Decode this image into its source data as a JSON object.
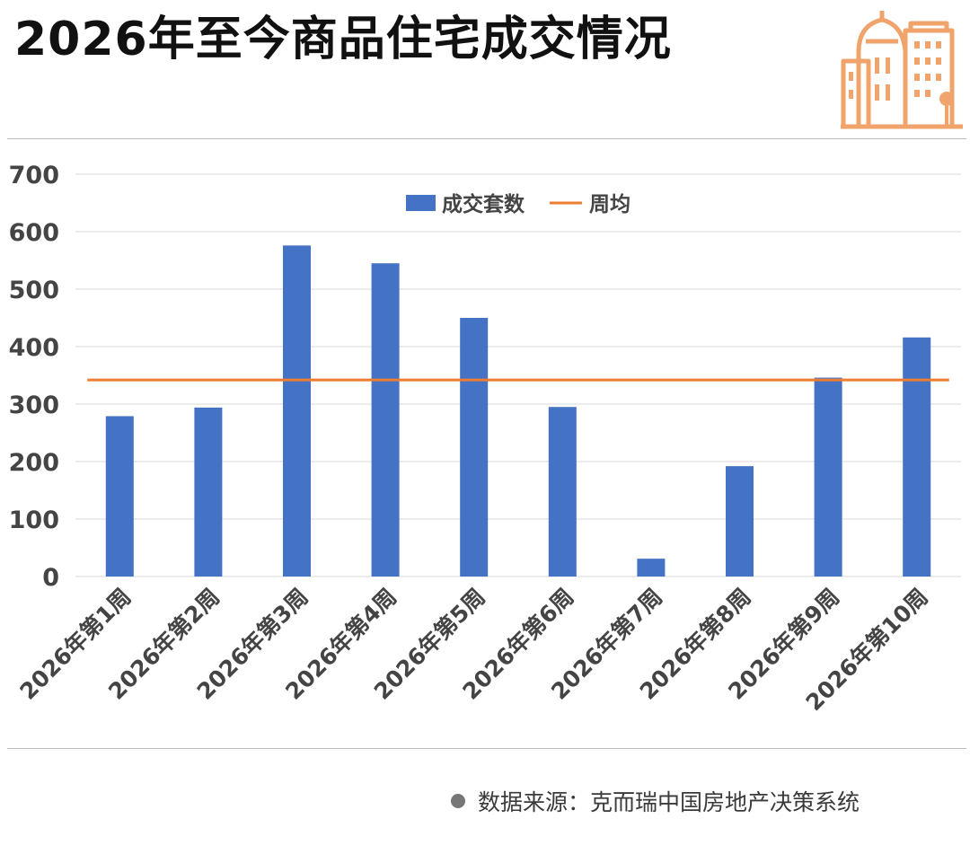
{
  "header": {
    "title": "2026年至今商品住宅成交情况"
  },
  "logo": {
    "icon": "city-buildings-icon",
    "color": "#F0A36B"
  },
  "chart_data": {
    "type": "bar",
    "categories": [
      "2026年第1周",
      "2026年第2周",
      "2026年第3周",
      "2026年第4周",
      "2026年第5周",
      "2026年第6周",
      "2026年第7周",
      "2026年第8周",
      "2026年第9周",
      "2026年第10周"
    ],
    "series": [
      {
        "name": "成交套数",
        "type": "bar",
        "color": "#4472C4",
        "values": [
          279,
          294,
          576,
          545,
          450,
          295,
          31,
          192,
          346,
          416
        ]
      },
      {
        "name": "周均",
        "type": "line",
        "color": "#ED7D31",
        "values": [
          342,
          342,
          342,
          342,
          342,
          342,
          342,
          342,
          342,
          342
        ]
      }
    ],
    "ylim": [
      0,
      700
    ],
    "yticks": [
      0,
      100,
      200,
      300,
      400,
      500,
      600,
      700
    ],
    "grid": true,
    "legend": "top-center"
  },
  "footer": {
    "source": "数据来源：克而瑞中国房地产决策系统"
  }
}
